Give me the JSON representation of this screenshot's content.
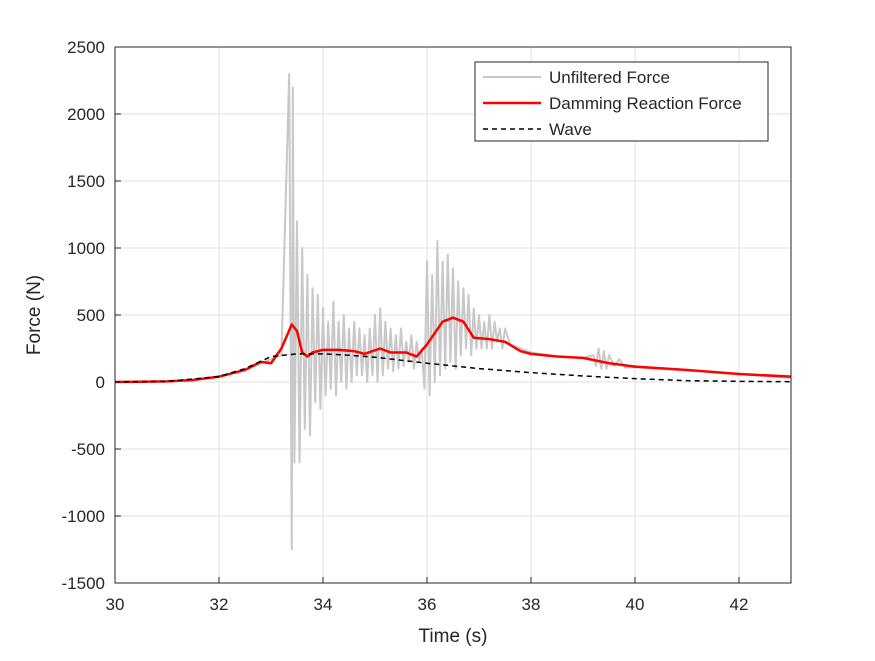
{
  "chart_data": {
    "type": "line",
    "xlabel": "Time (s)",
    "ylabel": "Force (N)",
    "xlim": [
      30,
      43
    ],
    "xticks": [
      30,
      32,
      34,
      36,
      38,
      40,
      42
    ],
    "ylim": [
      -1500,
      2500
    ],
    "yticks": [
      -1500,
      -1000,
      -500,
      0,
      500,
      1000,
      1500,
      2000,
      2500
    ],
    "grid": true,
    "legend": "northeast",
    "series": [
      {
        "name": "Unfiltered Force",
        "color": "#c8c8c8",
        "style": "solid",
        "x": [
          30,
          31,
          31.5,
          32,
          32.5,
          33,
          33.2,
          33.35,
          33.4,
          33.42,
          33.45,
          33.5,
          33.55,
          33.6,
          33.65,
          33.7,
          33.75,
          33.8,
          33.85,
          33.9,
          33.95,
          34.0,
          34.05,
          34.1,
          34.15,
          34.2,
          34.25,
          34.3,
          34.35,
          34.4,
          34.45,
          34.5,
          34.55,
          34.6,
          34.65,
          34.7,
          34.75,
          34.8,
          34.85,
          34.9,
          34.95,
          35.0,
          35.05,
          35.1,
          35.15,
          35.2,
          35.25,
          35.3,
          35.35,
          35.4,
          35.45,
          35.5,
          35.55,
          35.6,
          35.65,
          35.7,
          35.75,
          35.8,
          35.85,
          35.9,
          35.95,
          36.0,
          36.05,
          36.1,
          36.15,
          36.2,
          36.25,
          36.3,
          36.35,
          36.4,
          36.45,
          36.5,
          36.55,
          36.6,
          36.65,
          36.7,
          36.75,
          36.8,
          36.85,
          36.9,
          36.95,
          37.0,
          37.05,
          37.1,
          37.15,
          37.2,
          37.25,
          37.3,
          37.35,
          37.4,
          37.45,
          37.5,
          37.6,
          37.8,
          38.0,
          38.5,
          39.0,
          39.2,
          39.25,
          39.3,
          39.35,
          39.4,
          39.45,
          39.5,
          39.6,
          39.7,
          39.8,
          40,
          41,
          42,
          43
        ],
        "values": [
          0,
          5,
          15,
          40,
          90,
          170,
          200,
          2300,
          -1250,
          2200,
          -600,
          1200,
          -600,
          1000,
          -350,
          800,
          -400,
          700,
          -150,
          650,
          -200,
          550,
          -100,
          450,
          -50,
          600,
          -100,
          450,
          0,
          500,
          -50,
          400,
          0,
          450,
          50,
          400,
          50,
          350,
          0,
          400,
          50,
          500,
          0,
          550,
          50,
          450,
          100,
          400,
          80,
          350,
          100,
          400,
          120,
          300,
          150,
          350,
          100,
          300,
          150,
          250,
          -50,
          900,
          -100,
          800,
          0,
          1050,
          50,
          900,
          100,
          950,
          150,
          850,
          100,
          750,
          200,
          700,
          250,
          650,
          200,
          550,
          250,
          500,
          250,
          450,
          250,
          500,
          250,
          450,
          300,
          400,
          250,
          400,
          280,
          250,
          220,
          190,
          180,
          200,
          120,
          250,
          100,
          230,
          100,
          200,
          120,
          170,
          110,
          110,
          85,
          60,
          30
        ]
      },
      {
        "name": "Damming Reaction Force",
        "color": "#ff0000",
        "style": "solid",
        "x": [
          30,
          31,
          31.5,
          32,
          32.5,
          32.8,
          33,
          33.2,
          33.4,
          33.5,
          33.6,
          33.7,
          33.8,
          34,
          34.3,
          34.6,
          34.8,
          35.1,
          35.3,
          35.6,
          35.8,
          36,
          36.3,
          36.5,
          36.7,
          36.9,
          37.2,
          37.5,
          37.8,
          38,
          38.5,
          39,
          39.5,
          40,
          41,
          42,
          43
        ],
        "values": [
          0,
          5,
          15,
          40,
          90,
          150,
          140,
          250,
          430,
          380,
          220,
          190,
          220,
          240,
          240,
          230,
          210,
          250,
          220,
          220,
          190,
          280,
          450,
          480,
          450,
          330,
          320,
          300,
          230,
          210,
          190,
          180,
          140,
          115,
          90,
          60,
          40
        ]
      },
      {
        "name": "Wave",
        "color": "#000000",
        "style": "dashed",
        "x": [
          30,
          31,
          32,
          32.5,
          33,
          33.5,
          34,
          34.5,
          35,
          36,
          37,
          38,
          39,
          40,
          41,
          42,
          43
        ],
        "values": [
          0,
          5,
          40,
          100,
          190,
          210,
          210,
          200,
          185,
          140,
          100,
          70,
          45,
          25,
          10,
          5,
          2
        ]
      }
    ]
  }
}
